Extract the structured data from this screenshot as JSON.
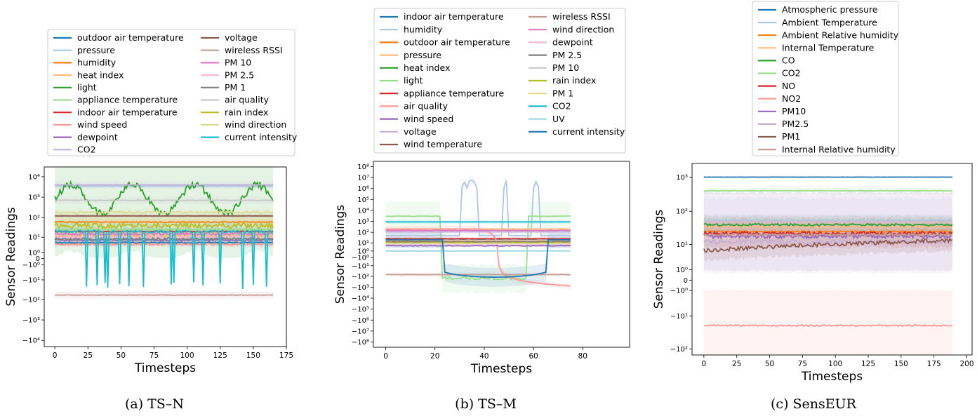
{
  "chart_data": [
    {
      "type": "line",
      "caption": "(a) TS–N",
      "xlabel": "Timesteps",
      "ylabel": "Sensor Readings",
      "xlim": [
        -8,
        175
      ],
      "xticks": [
        0,
        25,
        50,
        75,
        100,
        125,
        150,
        175
      ],
      "yscale": "symlog",
      "ylim": [
        -20000,
        30000
      ],
      "yticks": [
        {
          "v": 10000,
          "label": "10⁴"
        },
        {
          "v": 1000,
          "label": "10³"
        },
        {
          "v": 100,
          "label": "10²"
        },
        {
          "v": 10,
          "label": "10¹"
        },
        {
          "v": 1,
          "label": "10⁰"
        },
        {
          "v": 0,
          "label": "0"
        },
        {
          "v": -1,
          "label": "−10⁰"
        },
        {
          "v": -10,
          "label": "−10¹"
        },
        {
          "v": -100,
          "label": "−10²"
        },
        {
          "v": -1000,
          "label": "−10³"
        },
        {
          "v": -10000,
          "label": "−10⁴"
        }
      ],
      "legend_columns": 2,
      "legend_placement": "above plot",
      "series": [
        {
          "name": "outdoor air temperature",
          "color": "#1f77b4",
          "level": 5,
          "noise": 0.15,
          "band": 0.2
        },
        {
          "name": "pressure",
          "color": "#aec7e8",
          "level": 3500,
          "noise": 0.03,
          "band": 0.1
        },
        {
          "name": "humidity",
          "color": "#ff7f0e",
          "level": 60,
          "noise": 0.1,
          "band": 0.2
        },
        {
          "name": "heat index",
          "color": "#ffbb78",
          "level": 12,
          "noise": 0.15,
          "band": 0.2
        },
        {
          "name": "light",
          "color": "#2ca02c",
          "level": 800,
          "noise": 1.2,
          "band": 4,
          "pattern": "periodic"
        },
        {
          "name": "appliance temperature",
          "color": "#98df8a",
          "level": 25,
          "noise": 0.1,
          "band": 0.2
        },
        {
          "name": "indoor air temperature",
          "color": "#d62728",
          "level": 20,
          "noise": 0.1,
          "band": 0.2
        },
        {
          "name": "wind speed",
          "color": "#ff9896",
          "level": 4,
          "noise": 0.3,
          "band": 0.2
        },
        {
          "name": "dewpoint",
          "color": "#9467bd",
          "level": 7,
          "noise": 0.2,
          "band": 0.2
        },
        {
          "name": "CO2",
          "color": "#c5b0d5",
          "level": 4000,
          "noise": 0.05,
          "band": 0.2
        },
        {
          "name": "voltage",
          "color": "#8c564b",
          "level": 120,
          "noise": 0.02,
          "band": 0.1
        },
        {
          "name": "wireless RSSI",
          "color": "#c49c94",
          "level": -60,
          "noise": 0.05,
          "band": 0.2
        },
        {
          "name": "PM 10",
          "color": "#e377c2",
          "level": 15,
          "noise": 0.3,
          "band": 0.2
        },
        {
          "name": "PM 2.5",
          "color": "#f7b6d2",
          "level": 10,
          "noise": 0.3,
          "band": 0.2
        },
        {
          "name": "PM 1",
          "color": "#7f7f7f",
          "level": 8,
          "noise": 0.3,
          "band": 0.2
        },
        {
          "name": "air quality",
          "color": "#c7c7c7",
          "level": 700,
          "noise": 0.05,
          "band": 0.2
        },
        {
          "name": "rain index",
          "color": "#bcbd22",
          "level": 40,
          "noise": 0.6,
          "band": 0.6
        },
        {
          "name": "wind direction",
          "color": "#dbdb8d",
          "level": 180,
          "noise": 0.2,
          "band": 0.2
        },
        {
          "name": "current intensity",
          "color": "#17becf",
          "level": 20,
          "noise": 0.3,
          "band": 0.5,
          "pattern": "dips"
        }
      ]
    },
    {
      "type": "line",
      "caption": "(b) TS–M",
      "xlabel": "Timesteps",
      "ylabel": "Sensor Readings",
      "xlim": [
        -5,
        99
      ],
      "xticks": [
        0,
        20,
        40,
        60,
        80
      ],
      "yscale": "symlog",
      "ylim": [
        -300000000,
        300000000
      ],
      "yticks": [
        {
          "v": 100000000,
          "label": "10⁸"
        },
        {
          "v": 10000000,
          "label": "10⁷"
        },
        {
          "v": 1000000,
          "label": "10⁶"
        },
        {
          "v": 100000,
          "label": "10⁵"
        },
        {
          "v": 10000,
          "label": "10⁴"
        },
        {
          "v": 1000,
          "label": "10³"
        },
        {
          "v": 100,
          "label": "10²"
        },
        {
          "v": 10,
          "label": "10¹"
        },
        {
          "v": 1,
          "label": "10⁰"
        },
        {
          "v": -1,
          "label": "−10⁰"
        },
        {
          "v": -10,
          "label": "−10¹"
        },
        {
          "v": -100,
          "label": "−10²"
        },
        {
          "v": -1000,
          "label": "−10³"
        },
        {
          "v": -10000,
          "label": "−10⁴"
        },
        {
          "v": -100000,
          "label": "−10⁵"
        },
        {
          "v": -1000000,
          "label": "−10⁶"
        },
        {
          "v": -10000000,
          "label": "−10⁷"
        },
        {
          "v": -100000000,
          "label": "−10⁸"
        }
      ],
      "legend_columns": 2,
      "legend_placement": "above plot",
      "series": [
        {
          "name": "indoor air temperature",
          "color": "#1f77b4",
          "level": 20,
          "noise": 0.05,
          "band": 0.2
        },
        {
          "name": "humidity",
          "color": "#aec7e8",
          "level": 50,
          "noise": 0.1,
          "band": 0.5,
          "pattern": "spikes"
        },
        {
          "name": "outdoor air temperature",
          "color": "#ff7f0e",
          "level": 15,
          "noise": 0.05,
          "band": 0.2
        },
        {
          "name": "pressure",
          "color": "#ffbb78",
          "level": 200,
          "noise": 0.03,
          "band": 0.2
        },
        {
          "name": "heat index",
          "color": "#2ca02c",
          "level": 18,
          "noise": 0.05,
          "band": 0.2
        },
        {
          "name": "light",
          "color": "#98df8a",
          "level": 3000,
          "noise": 0.1,
          "band": 1.5,
          "pattern": "drop"
        },
        {
          "name": "appliance temperature",
          "color": "#d62728",
          "level": 25,
          "noise": 0.05,
          "band": 0.2
        },
        {
          "name": "air quality",
          "color": "#ff9896",
          "level": 200,
          "noise": 0.05,
          "band": 0.3,
          "pattern": "decline"
        },
        {
          "name": "wind speed",
          "color": "#9467bd",
          "level": 5,
          "noise": 0.2,
          "band": 0.2
        },
        {
          "name": "voltage",
          "color": "#c5b0d5",
          "level": 110,
          "noise": 0.02,
          "band": 0.2
        },
        {
          "name": "wind temperature",
          "color": "#8c564b",
          "level": 12,
          "noise": 0.05,
          "band": 0.2
        },
        {
          "name": "wireless RSSI",
          "color": "#c49c94",
          "level": -70,
          "noise": 0.05,
          "band": 0.2
        },
        {
          "name": "wind direction",
          "color": "#e377c2",
          "level": 150,
          "noise": 0.1,
          "band": 0.2
        },
        {
          "name": "dewpoint",
          "color": "#f7b6d2",
          "level": 8,
          "noise": 0.1,
          "band": 0.2
        },
        {
          "name": "PM 2.5",
          "color": "#7f7f7f",
          "level": 12,
          "noise": 0.1,
          "band": 0.2
        },
        {
          "name": "PM 10",
          "color": "#c7c7c7",
          "level": 18,
          "noise": 0.1,
          "band": 0.2
        },
        {
          "name": "rain index",
          "color": "#bcbd22",
          "level": 10,
          "noise": 0.1,
          "band": 0.2
        },
        {
          "name": "PM 1",
          "color": "#dbdb8d",
          "level": 9,
          "noise": 0.1,
          "band": 0.2
        },
        {
          "name": "CO2",
          "color": "#17becf",
          "level": 900,
          "noise": 0.02,
          "band": 0.2
        },
        {
          "name": "UV",
          "color": "#9edae5",
          "level": 1,
          "noise": 0.1,
          "band": 0.3
        },
        {
          "name": "current intensity",
          "color": "#1f77b4",
          "level": 20,
          "noise": 0.05,
          "band": 1,
          "pattern": "trough"
        }
      ]
    },
    {
      "type": "line",
      "caption": "(c) SensEUR",
      "xlabel": "Timesteps",
      "ylabel": "Sensor Readings",
      "xlim": [
        -9,
        204
      ],
      "xticks": [
        0,
        25,
        50,
        75,
        100,
        125,
        150,
        175,
        200
      ],
      "yscale": "symlog",
      "ylim": [
        -150,
        2500
      ],
      "yticks": [
        {
          "v": 1000,
          "label": "10³"
        },
        {
          "v": 100,
          "label": "10²"
        },
        {
          "v": 10,
          "label": "10¹"
        },
        {
          "v": 1,
          "label": "10⁰"
        },
        {
          "v": 0,
          "label": "0"
        },
        {
          "v": -1,
          "label": "−10⁰"
        },
        {
          "v": -10,
          "label": "−10¹"
        },
        {
          "v": -100,
          "label": "−10²"
        }
      ],
      "legend_columns": 1,
      "legend_placement": "above plot",
      "series": [
        {
          "name": "Atmospheric pressure",
          "color": "#1f77b4",
          "level": 1000,
          "noise": 0.01,
          "band": 0.02
        },
        {
          "name": "Ambient Temperature",
          "color": "#aec7e8",
          "level": 55,
          "noise": 0.05,
          "band": 0.2
        },
        {
          "name": "Ambient Relative humidity",
          "color": "#ff7f0e",
          "level": 25,
          "noise": 0.1,
          "band": 0.2
        },
        {
          "name": "Internal Temperature",
          "color": "#ffbb78",
          "level": 35,
          "noise": 0.05,
          "band": 0.2
        },
        {
          "name": "CO",
          "color": "#2ca02c",
          "level": 40,
          "noise": 0.15,
          "band": 0.3
        },
        {
          "name": "CO2",
          "color": "#98df8a",
          "level": 400,
          "noise": 0.03,
          "band": 0.1
        },
        {
          "name": "NO",
          "color": "#d62728",
          "level": 22,
          "noise": 0.25,
          "band": 0.5
        },
        {
          "name": "NO2",
          "color": "#ff9896",
          "level": -20,
          "noise": 0.1,
          "band": 1.5
        },
        {
          "name": "PM10",
          "color": "#9467bd",
          "level": 18,
          "noise": 0.3,
          "band": 1.5
        },
        {
          "name": "PM2.5",
          "color": "#c5b0d5",
          "level": 12,
          "noise": 0.3,
          "band": 1.5
        },
        {
          "name": "PM1",
          "color": "#8c564b",
          "level": 9,
          "noise": 0.3,
          "band": 0.4,
          "pattern": "rising"
        },
        {
          "name": "Internal Relative humidity",
          "color": "#c49c94",
          "level": 20,
          "noise": 0.1,
          "band": 0.2
        }
      ]
    }
  ]
}
